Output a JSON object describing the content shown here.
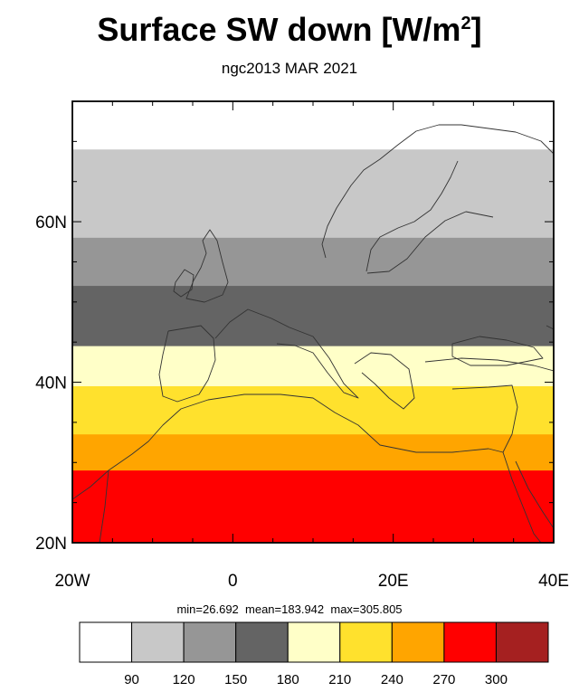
{
  "title_main": "Surface SW down [W/m",
  "title_sup": "2",
  "title_end": "]",
  "subtitle": "ngc2013 MAR 2021",
  "stats": {
    "min_label": "min=",
    "min": "26.692",
    "mean_label": "mean=",
    "mean": "183.942",
    "max_label": "max=",
    "max": "305.805"
  },
  "chart_data": {
    "type": "heatmap",
    "title": "Surface SW down [W/m2]",
    "subtitle": "ngc2013 MAR 2021",
    "x_ticks": [
      {
        "value": -20,
        "label": "20W"
      },
      {
        "value": 0,
        "label": "0"
      },
      {
        "value": 20,
        "label": "20E"
      },
      {
        "value": 40,
        "label": "40E"
      }
    ],
    "y_ticks": [
      {
        "value": 20,
        "label": "20N"
      },
      {
        "value": 40,
        "label": "40N"
      },
      {
        "value": 60,
        "label": "60N"
      }
    ],
    "xlim": [
      -20,
      40
    ],
    "ylim": [
      20,
      75
    ],
    "colorbar": {
      "levels": [
        "90",
        "120",
        "150",
        "180",
        "210",
        "240",
        "270",
        "300"
      ],
      "colors": [
        "#ffffff",
        "#c8c8c8",
        "#969696",
        "#646464",
        "#ffffc8",
        "#ffe12d",
        "#ffa500",
        "#ff0000",
        "#a52020"
      ]
    },
    "bands": [
      {
        "lat_south": 69.0,
        "lat_north": 75.0,
        "bin": 0
      },
      {
        "lat_south": 63.0,
        "lat_north": 69.0,
        "bin": 1
      },
      {
        "lat_south": 58.0,
        "lat_north": 63.0,
        "bin": 1
      },
      {
        "lat_south": 52.0,
        "lat_north": 58.0,
        "bin": 2
      },
      {
        "lat_south": 44.5,
        "lat_north": 52.0,
        "bin": 3
      },
      {
        "lat_south": 39.5,
        "lat_north": 44.5,
        "bin": 4
      },
      {
        "lat_south": 33.5,
        "lat_north": 39.5,
        "bin": 5
      },
      {
        "lat_south": 29.0,
        "lat_north": 33.5,
        "bin": 6
      },
      {
        "lat_south": 20.0,
        "lat_north": 29.0,
        "bin": 7
      }
    ]
  }
}
